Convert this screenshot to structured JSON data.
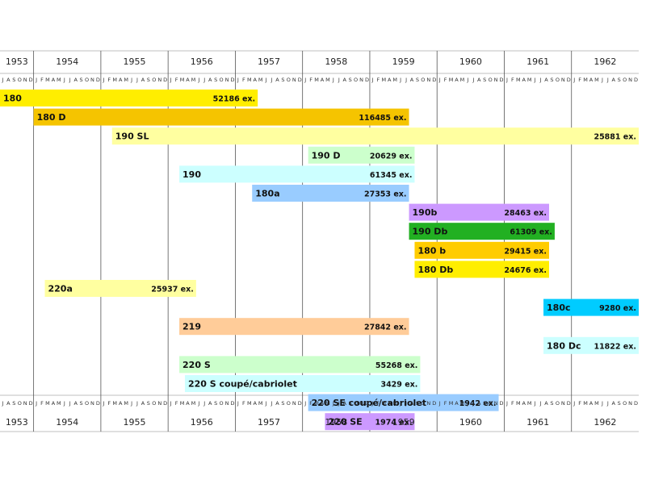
{
  "chart_data": {
    "type": "gantt",
    "title": "",
    "time_axis": {
      "start": "1953-07",
      "end": "1962-12",
      "years": [
        "1953",
        "1954",
        "1955",
        "1956",
        "1957",
        "1958",
        "1959",
        "1960",
        "1961",
        "1962"
      ],
      "month_letters": [
        "J",
        "F",
        "M",
        "A",
        "M",
        "J",
        "J",
        "A",
        "S",
        "O",
        "N",
        "D"
      ],
      "first_year_month_letters": [
        "J",
        "A",
        "S",
        "O",
        "N",
        "D"
      ]
    },
    "grid": true,
    "bars": [
      {
        "label": "180",
        "value": "52186 ex.",
        "start": "1953-07",
        "end": "1957-04",
        "color": "#ffee00"
      },
      {
        "label": "180 D",
        "value": "116485 ex.",
        "start": "1954-01",
        "end": "1959-07",
        "color": "#f5c400"
      },
      {
        "label": "190 SL",
        "value": "25881 ex.",
        "start": "1955-03",
        "end": "1962-12",
        "color": "#ffffa0"
      },
      {
        "label": "190 D",
        "value": "20629 ex.",
        "start": "1958-02",
        "end": "1959-08",
        "color": "#ccffcc"
      },
      {
        "label": "190",
        "value": "61345 ex.",
        "start": "1956-03",
        "end": "1959-08",
        "color": "#ccffff"
      },
      {
        "label": "180a",
        "value": "27353 ex.",
        "start": "1957-04",
        "end": "1959-07",
        "color": "#99ccff"
      },
      {
        "label": "190b",
        "value": "28463 ex.",
        "start": "1959-08",
        "end": "1961-08",
        "color": "#cc99ff"
      },
      {
        "label": "190 Db",
        "value": "61309 ex.",
        "start": "1959-08",
        "end": "1961-09",
        "color": "#22b022"
      },
      {
        "label": "180 b",
        "value": "29415 ex.",
        "start": "1959-09",
        "end": "1961-08",
        "color": "#ffcc00"
      },
      {
        "label": "180 Db",
        "value": "24676 ex.",
        "start": "1959-09",
        "end": "1961-08",
        "color": "#ffee00"
      },
      {
        "label": "220a",
        "value": "25937 ex.",
        "start": "1954-03",
        "end": "1956-05",
        "color": "#ffffa0"
      },
      {
        "label": "180c",
        "value": "9280 ex.",
        "start": "1961-08",
        "end": "1962-12",
        "color": "#00ccff"
      },
      {
        "label": "219",
        "value": "27842 ex.",
        "start": "1956-03",
        "end": "1959-07",
        "color": "#ffcc99"
      },
      {
        "label": "180 Dc",
        "value": "11822 ex.",
        "start": "1961-08",
        "end": "1962-12",
        "color": "#ccffff"
      },
      {
        "label": "220 S",
        "value": "55268 ex.",
        "start": "1956-03",
        "end": "1959-09",
        "color": "#ccffcc"
      },
      {
        "label": "220 S coupé/cabriolet",
        "value": "3429 ex.",
        "start": "1956-04",
        "end": "1959-09",
        "color": "#ccffff"
      },
      {
        "label": "220 SE coupé/cabriolet",
        "value": "1942 ex.",
        "start": "1958-02",
        "end": "1960-11",
        "color": "#99ccff"
      },
      {
        "label": "220 SE",
        "value": "1974 ex.",
        "start": "1958-05",
        "end": "1959-08",
        "color": "#cc99ff"
      }
    ]
  }
}
